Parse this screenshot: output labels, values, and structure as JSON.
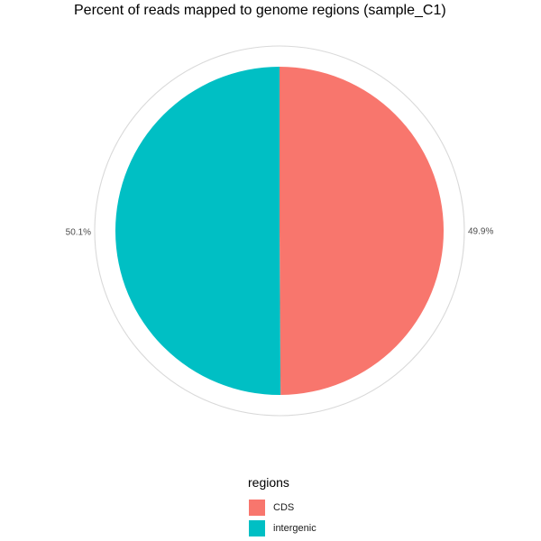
{
  "chart_data": {
    "type": "pie",
    "title": "Percent of reads mapped to genome regions (sample_C1)",
    "slices": [
      {
        "label": "CDS",
        "value": 49.9,
        "display": "49.9%",
        "color": "#F8766D"
      },
      {
        "label": "intergenic",
        "value": 50.1,
        "display": "50.1%",
        "color": "#00BFC4"
      }
    ],
    "legend": {
      "title": "regions",
      "position": "bottom",
      "items": [
        {
          "label": "CDS",
          "color": "#F8766D"
        },
        {
          "label": "intergenic",
          "color": "#00BFC4"
        }
      ]
    },
    "grid": true
  }
}
